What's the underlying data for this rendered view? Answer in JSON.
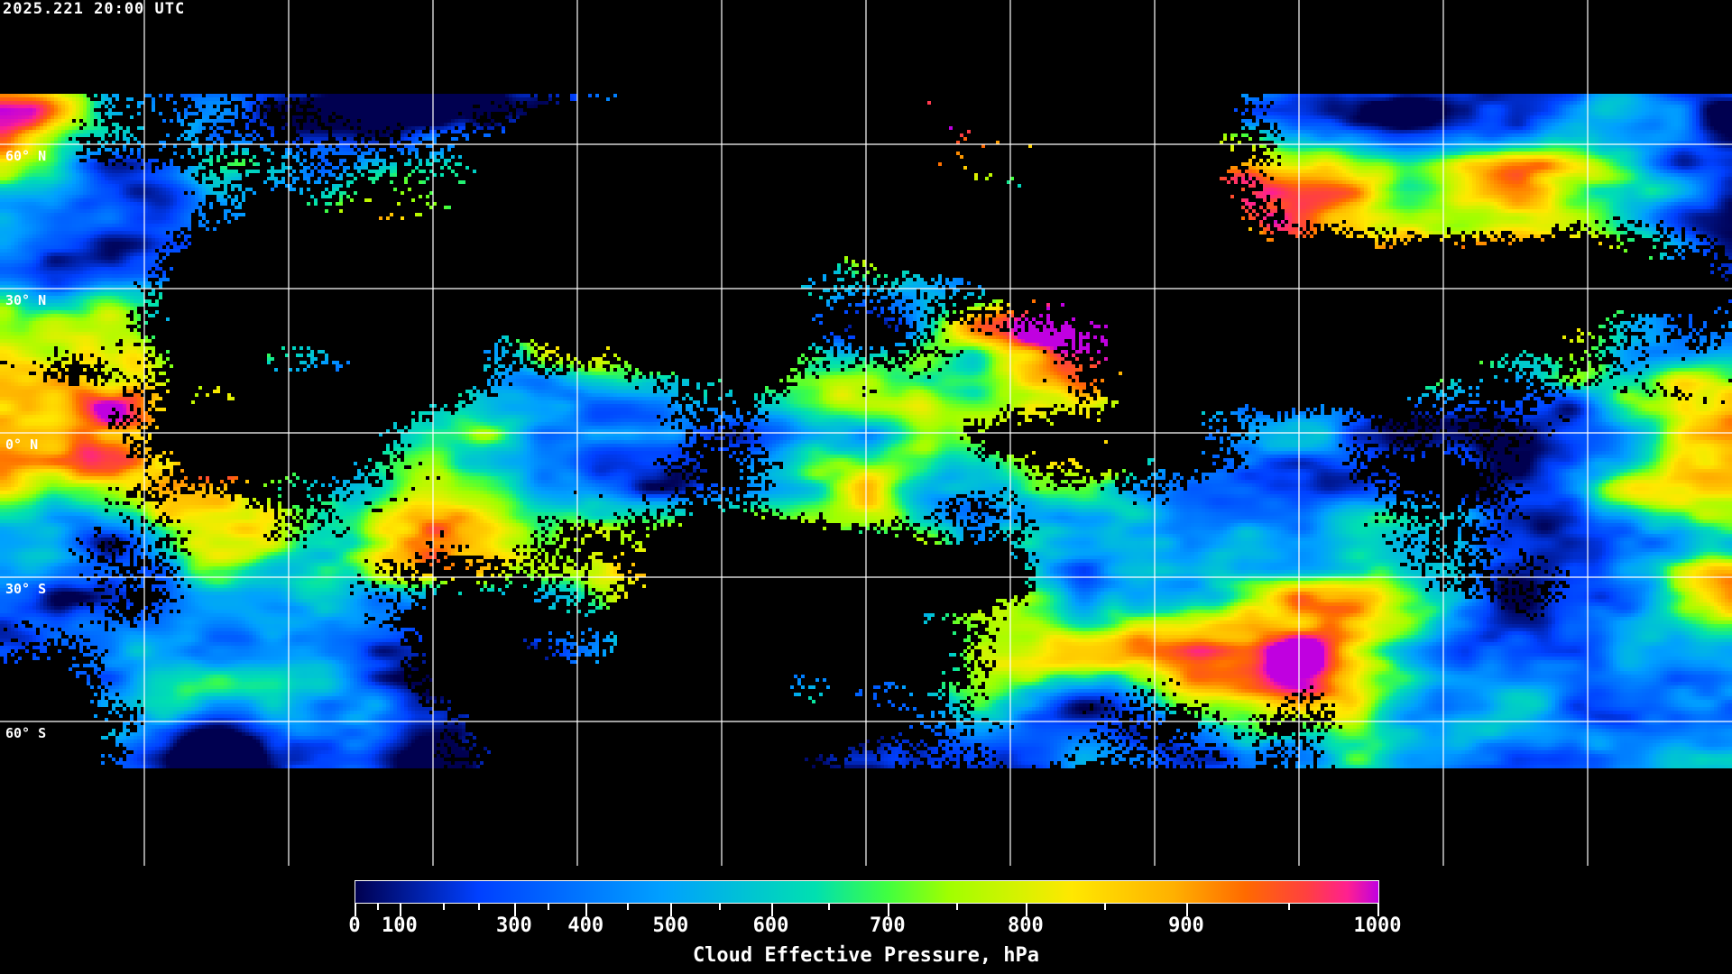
{
  "timestamp": "2025.221 20:00 UTC",
  "map": {
    "projection": "equirectangular",
    "grid_lon_step_deg": 30,
    "lat_labels": [
      "60° N",
      "30° N",
      "0° N",
      "30° S",
      "60° S"
    ],
    "lat_values": [
      60,
      30,
      0,
      -30,
      -60
    ]
  },
  "colorbar": {
    "title": "Cloud Effective Pressure, hPa",
    "min": 0,
    "max": 1000,
    "tick_labels": [
      "0",
      "100",
      "300",
      "400",
      "500",
      "600",
      "700",
      "800",
      "900",
      "1000"
    ],
    "colors": [
      "#000050",
      "#0040ff",
      "#00a0ff",
      "#00e0b0",
      "#40ff40",
      "#a0ff00",
      "#ffe800",
      "#ffb000",
      "#ff6a00",
      "#ff4040",
      "#ff2090",
      "#c000e0"
    ]
  }
}
